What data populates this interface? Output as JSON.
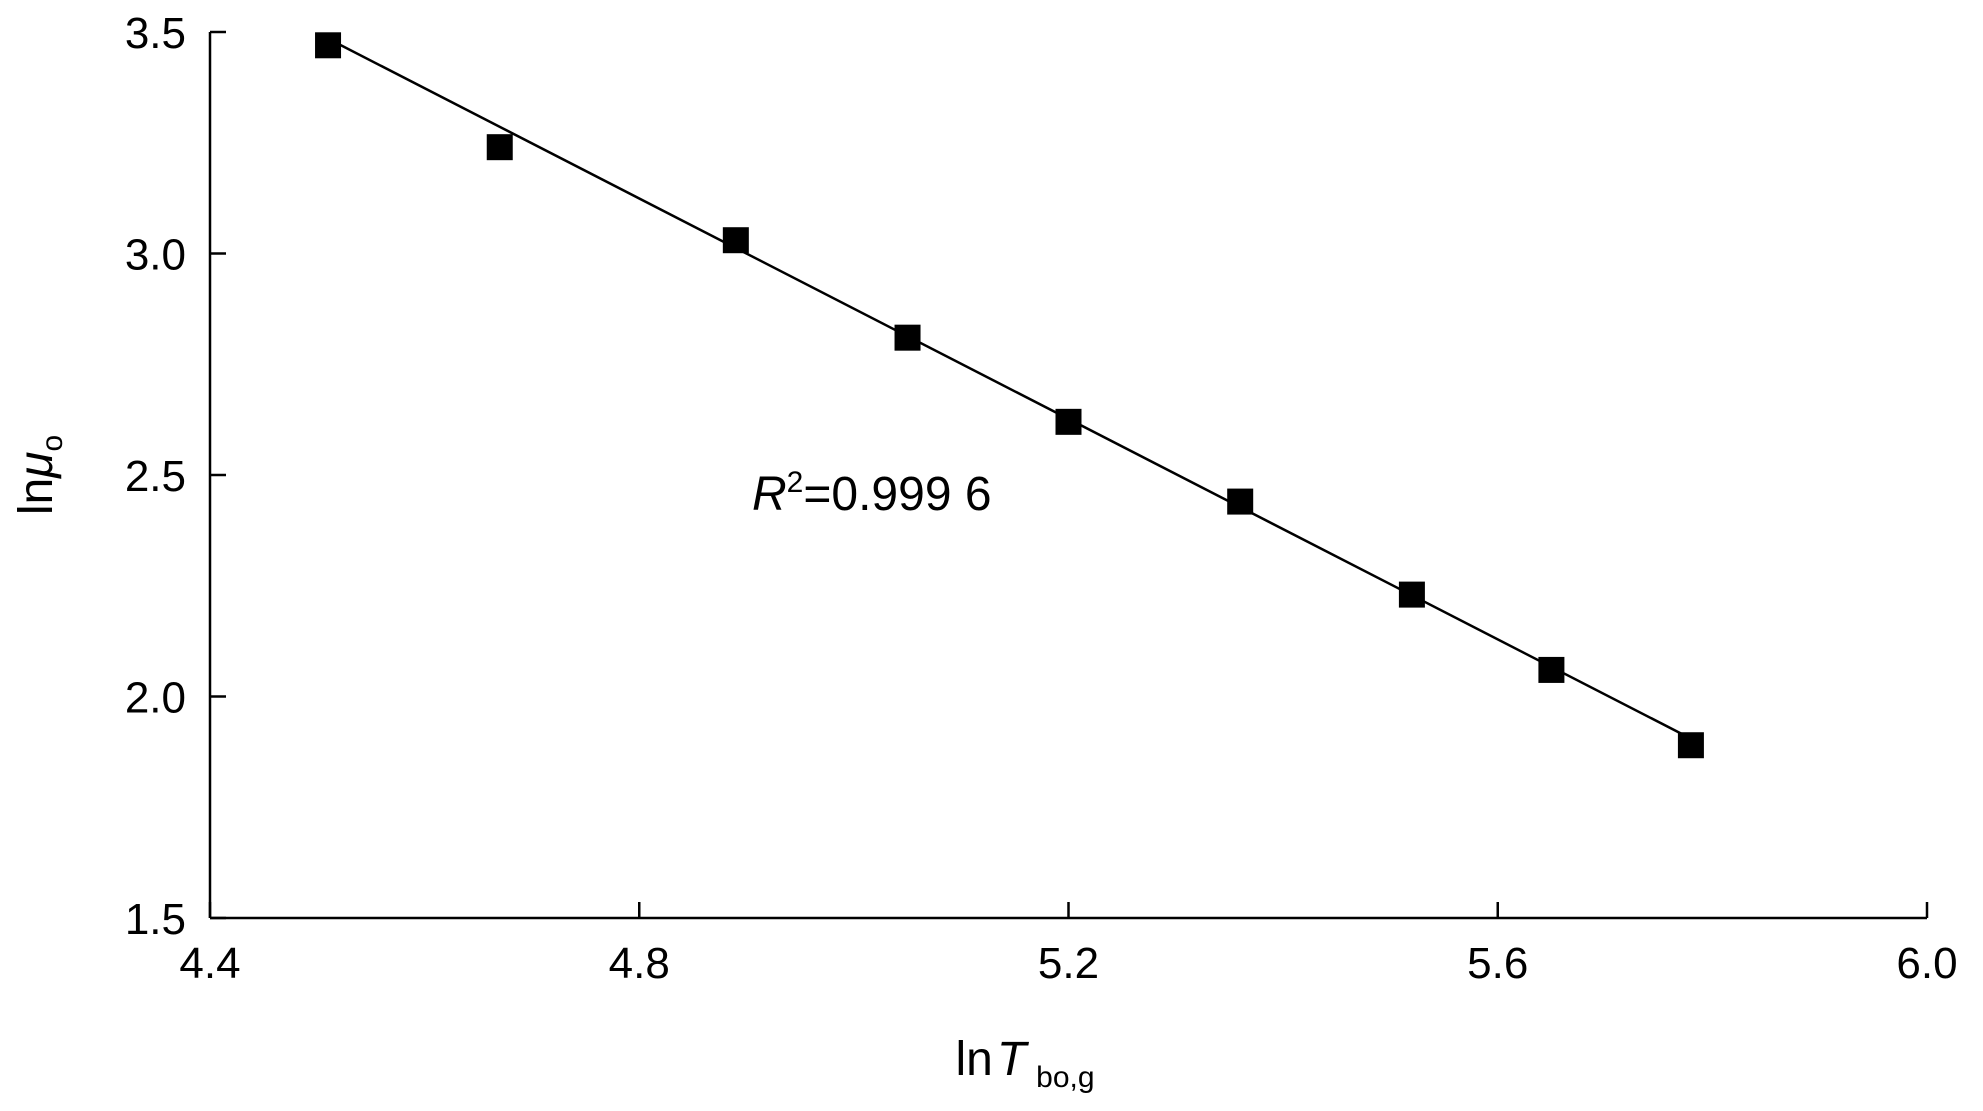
{
  "chart_data": {
    "type": "scatter",
    "xlabel": {
      "prefix": "ln",
      "variable": "T",
      "subscript": "bo,g"
    },
    "ylabel": {
      "prefix": "ln",
      "variable": "μ",
      "subscript": "o"
    },
    "xlim": [
      4.4,
      6.0
    ],
    "ylim": [
      1.5,
      3.5
    ],
    "xticks": [
      "4.4",
      "4.8",
      "5.2",
      "5.6",
      "6.0"
    ],
    "yticks": [
      "1.5",
      "2.0",
      "2.5",
      "3.0",
      "3.5"
    ],
    "grid": false,
    "legend": "none",
    "series": [
      {
        "marker": "square",
        "color": "#000000",
        "points": [
          {
            "x": 4.51,
            "y": 3.47
          },
          {
            "x": 4.67,
            "y": 3.24
          },
          {
            "x": 4.89,
            "y": 3.03
          },
          {
            "x": 5.05,
            "y": 2.81
          },
          {
            "x": 5.2,
            "y": 2.62
          },
          {
            "x": 5.36,
            "y": 2.44
          },
          {
            "x": 5.52,
            "y": 2.23
          },
          {
            "x": 5.65,
            "y": 2.06
          },
          {
            "x": 5.78,
            "y": 1.89
          }
        ]
      }
    ],
    "fit_line": {
      "x1": 4.51,
      "y1": 3.485,
      "x2": 5.78,
      "y2": 1.905
    },
    "annotation": {
      "variable": "R",
      "superscript": "2",
      "value": "=0.999 6"
    }
  }
}
